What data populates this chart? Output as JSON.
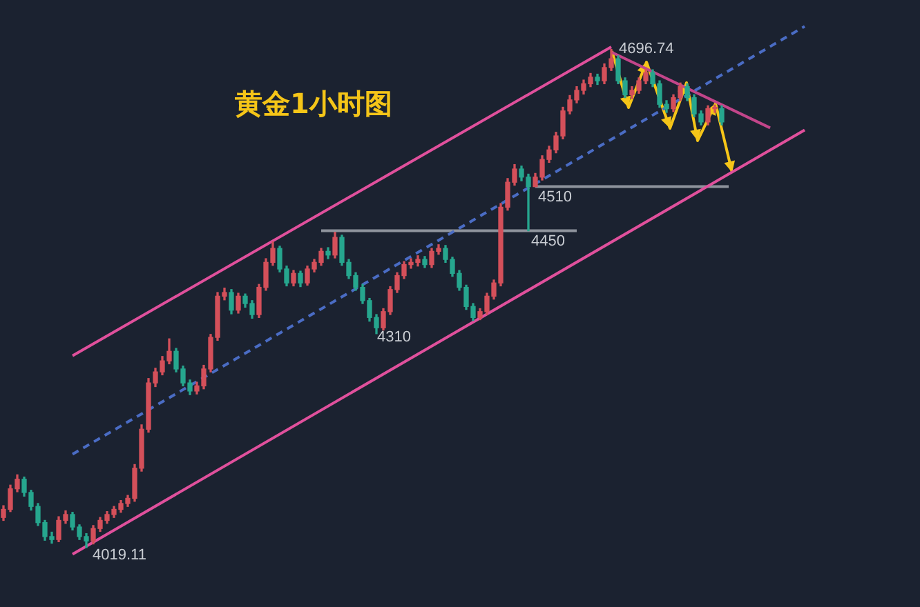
{
  "chart_data": {
    "type": "candlestick",
    "title": "黄金1小时图",
    "tick_labels": false,
    "categories": [
      null,
      null,
      null,
      null,
      null,
      null,
      null,
      null,
      null,
      null,
      null,
      null,
      null,
      null,
      null,
      null,
      null,
      null,
      null,
      null,
      null,
      null,
      null,
      null,
      null,
      null,
      null,
      null,
      null,
      null,
      null,
      null,
      null,
      null,
      null,
      null,
      null,
      null,
      null,
      null,
      null,
      null,
      null,
      null,
      null,
      null,
      null,
      null,
      null,
      null,
      null,
      null,
      null,
      null,
      null,
      null,
      null,
      null,
      null,
      null,
      null,
      null,
      null,
      null,
      null,
      null,
      null,
      null,
      null,
      null,
      null,
      null,
      null,
      null,
      null,
      null,
      null,
      null,
      null,
      null,
      null,
      null,
      null,
      null,
      null,
      null,
      null,
      null,
      null,
      null,
      null,
      null,
      null,
      null,
      null,
      null,
      null,
      null,
      null,
      null,
      null,
      null,
      null,
      null,
      null,
      null,
      null,
      null,
      null,
      null,
      null,
      null,
      null,
      null,
      null,
      null,
      null
    ],
    "ohlc": [
      [
        4060,
        4076,
        4056,
        4071
      ],
      [
        4071,
        4104,
        4068,
        4099
      ],
      [
        4099,
        4118,
        4095,
        4112
      ],
      [
        4112,
        4115,
        4089,
        4094
      ],
      [
        4094,
        4097,
        4070,
        4075
      ],
      [
        4075,
        4079,
        4049,
        4053
      ],
      [
        4053,
        4056,
        4029,
        4034
      ],
      [
        4034,
        4040,
        4025,
        4030
      ],
      [
        4030,
        4061,
        4027,
        4056
      ],
      [
        4056,
        4069,
        4052,
        4064
      ],
      [
        4064,
        4067,
        4043,
        4047
      ],
      [
        4047,
        4050,
        4030,
        4034
      ],
      [
        4034,
        4038,
        4019.11,
        4028
      ],
      [
        4028,
        4049,
        4024,
        4045
      ],
      [
        4045,
        4060,
        4041,
        4056
      ],
      [
        4056,
        4068,
        4052,
        4064
      ],
      [
        4064,
        4075,
        4060,
        4071
      ],
      [
        4071,
        4083,
        4067,
        4079
      ],
      [
        4079,
        4090,
        4075,
        4086
      ],
      [
        4086,
        4132,
        4082,
        4127
      ],
      [
        4127,
        4186,
        4123,
        4180
      ],
      [
        4180,
        4249,
        4176,
        4243
      ],
      [
        4243,
        4263,
        4238,
        4258
      ],
      [
        4258,
        4279,
        4254,
        4273
      ],
      [
        4273,
        4303,
        4269,
        4286
      ],
      [
        4286,
        4290,
        4258,
        4262
      ],
      [
        4262,
        4266,
        4239,
        4243
      ],
      [
        4243,
        4247,
        4227,
        4232
      ],
      [
        4232,
        4244,
        4228,
        4239
      ],
      [
        4239,
        4267,
        4235,
        4262
      ],
      [
        4262,
        4309,
        4258,
        4305
      ],
      [
        4305,
        4366,
        4301,
        4361
      ],
      [
        4361,
        4372,
        4356,
        4366
      ],
      [
        4366,
        4370,
        4337,
        4342
      ],
      [
        4342,
        4365,
        4338,
        4361
      ],
      [
        4361,
        4364,
        4346,
        4351
      ],
      [
        4351,
        4355,
        4331,
        4336
      ],
      [
        4336,
        4377,
        4332,
        4373
      ],
      [
        4373,
        4412,
        4369,
        4407
      ],
      [
        4407,
        4435,
        4403,
        4426
      ],
      [
        4426,
        4429,
        4394,
        4398
      ],
      [
        4398,
        4402,
        4375,
        4379
      ],
      [
        4379,
        4396,
        4375,
        4392
      ],
      [
        4392,
        4395,
        4374,
        4379
      ],
      [
        4379,
        4402,
        4376,
        4398
      ],
      [
        4398,
        4411,
        4394,
        4407
      ],
      [
        4407,
        4426,
        4403,
        4422
      ],
      [
        4422,
        4427,
        4412,
        4417
      ],
      [
        4417,
        4448,
        4413,
        4441
      ],
      [
        4441,
        4444,
        4403,
        4407
      ],
      [
        4407,
        4411,
        4385,
        4389
      ],
      [
        4389,
        4393,
        4369,
        4373
      ],
      [
        4373,
        4377,
        4351,
        4355
      ],
      [
        4355,
        4358,
        4327,
        4332
      ],
      [
        4332,
        4336,
        4310,
        4318
      ],
      [
        4318,
        4344,
        4315,
        4340
      ],
      [
        4340,
        4374,
        4336,
        4370
      ],
      [
        4370,
        4393,
        4366,
        4389
      ],
      [
        4389,
        4408,
        4385,
        4404
      ],
      [
        4404,
        4412,
        4399,
        4407
      ],
      [
        4407,
        4416,
        4402,
        4411
      ],
      [
        4411,
        4415,
        4400,
        4404
      ],
      [
        4404,
        4426,
        4400,
        4422
      ],
      [
        4422,
        4431,
        4418,
        4426
      ],
      [
        4426,
        4430,
        4407,
        4411
      ],
      [
        4411,
        4414,
        4388,
        4392
      ],
      [
        4392,
        4396,
        4369,
        4373
      ],
      [
        4373,
        4376,
        4343,
        4347
      ],
      [
        4347,
        4351,
        4328,
        4332
      ],
      [
        4332,
        4344,
        4329,
        4340
      ],
      [
        4340,
        4365,
        4336,
        4361
      ],
      [
        4361,
        4383,
        4357,
        4379
      ],
      [
        4379,
        4487,
        4375,
        4482
      ],
      [
        4482,
        4521,
        4478,
        4516
      ],
      [
        4516,
        4540,
        4512,
        4534
      ],
      [
        4534,
        4538,
        4518,
        4523
      ],
      [
        4523,
        4527,
        4450,
        4510
      ],
      [
        4510,
        4528,
        4510,
        4523
      ],
      [
        4523,
        4552,
        4519,
        4547
      ],
      [
        4547,
        4565,
        4543,
        4560
      ],
      [
        4560,
        4584,
        4556,
        4579
      ],
      [
        4579,
        4618,
        4575,
        4613
      ],
      [
        4613,
        4634,
        4609,
        4628
      ],
      [
        4628,
        4646,
        4624,
        4641
      ],
      [
        4641,
        4655,
        4636,
        4650
      ],
      [
        4650,
        4664,
        4646,
        4659
      ],
      [
        4659,
        4663,
        4649,
        4654
      ],
      [
        4654,
        4677,
        4650,
        4672
      ],
      [
        4672,
        4696.74,
        4668,
        4684
      ],
      [
        4684,
        4688,
        4650,
        4654
      ],
      [
        4654,
        4658,
        4631,
        4635
      ],
      [
        4635,
        4646,
        4630,
        4641
      ],
      [
        4641,
        4658,
        4637,
        4654
      ],
      [
        4654,
        4670,
        4650,
        4665
      ],
      [
        4665,
        4669,
        4646,
        4650
      ],
      [
        4650,
        4654,
        4618,
        4622
      ],
      [
        4622,
        4627,
        4611,
        4616
      ],
      [
        4616,
        4635,
        4612,
        4631
      ],
      [
        4631,
        4651,
        4627,
        4646
      ],
      [
        4646,
        4650,
        4627,
        4631
      ],
      [
        4631,
        4635,
        4605,
        4609
      ],
      [
        4609,
        4613,
        4594,
        4598
      ],
      [
        4598,
        4620,
        4594,
        4616
      ],
      [
        4616,
        4621,
        4611,
        4616
      ],
      [
        4616,
        4620,
        4594,
        4598
      ],
      null,
      null,
      null,
      null,
      null,
      null,
      null,
      null,
      null,
      null,
      null,
      null
    ],
    "series": [
      {
        "type": "line",
        "color": "#e0509c",
        "values": [
          null,
          null,
          null,
          null,
          null,
          null,
          null,
          null,
          null,
          null,
          4280,
          null,
          null,
          null,
          null,
          null,
          null,
          null,
          null,
          null,
          null,
          null,
          null,
          null,
          null,
          null,
          null,
          null,
          null,
          null,
          null,
          null,
          null,
          null,
          null,
          null,
          null,
          null,
          null,
          null,
          null,
          null,
          null,
          null,
          null,
          null,
          null,
          null,
          null,
          null,
          null,
          null,
          null,
          null,
          null,
          null,
          null,
          null,
          null,
          null,
          null,
          null,
          null,
          null,
          null,
          null,
          null,
          null,
          null,
          null,
          null,
          null,
          null,
          null,
          null,
          null,
          null,
          null,
          null,
          null,
          null,
          null,
          null,
          null,
          null,
          null,
          null,
          null,
          4700,
          null,
          null,
          null,
          null,
          null,
          null,
          null,
          null,
          null,
          null,
          null,
          null,
          null,
          null,
          null,
          null,
          null,
          null,
          null,
          null,
          null,
          null,
          null,
          null,
          null,
          null,
          null,
          null
        ]
      },
      {
        "type": "line",
        "color": "#e0509c",
        "values": [
          null,
          null,
          null,
          null,
          null,
          null,
          null,
          null,
          null,
          null,
          4010,
          null,
          null,
          null,
          null,
          null,
          null,
          null,
          null,
          null,
          null,
          null,
          null,
          null,
          null,
          null,
          null,
          null,
          null,
          null,
          null,
          null,
          null,
          null,
          null,
          null,
          null,
          null,
          null,
          null,
          null,
          null,
          null,
          null,
          null,
          null,
          null,
          null,
          null,
          null,
          null,
          null,
          null,
          null,
          null,
          null,
          null,
          null,
          null,
          null,
          null,
          null,
          null,
          null,
          null,
          null,
          null,
          null,
          null,
          null,
          null,
          null,
          null,
          null,
          null,
          null,
          null,
          null,
          null,
          null,
          null,
          null,
          null,
          null,
          null,
          null,
          null,
          null,
          null,
          null,
          null,
          null,
          null,
          null,
          null,
          null,
          null,
          null,
          null,
          null,
          null,
          null,
          null,
          null,
          null,
          null,
          null,
          null,
          null,
          null,
          null,
          null,
          null,
          null,
          null,
          null,
          4587
        ]
      },
      {
        "type": "line",
        "color": "#4a6cc4",
        "line_style": "dashed",
        "values": [
          null,
          null,
          null,
          null,
          null,
          null,
          null,
          null,
          null,
          null,
          4146,
          null,
          null,
          null,
          null,
          null,
          null,
          null,
          null,
          null,
          null,
          null,
          null,
          null,
          null,
          null,
          null,
          null,
          null,
          null,
          null,
          null,
          null,
          null,
          null,
          null,
          null,
          null,
          null,
          null,
          null,
          null,
          null,
          null,
          null,
          null,
          null,
          null,
          null,
          null,
          null,
          null,
          null,
          null,
          null,
          null,
          null,
          null,
          null,
          null,
          null,
          null,
          null,
          null,
          null,
          null,
          null,
          null,
          null,
          null,
          null,
          null,
          null,
          null,
          null,
          null,
          null,
          null,
          null,
          null,
          null,
          null,
          null,
          null,
          null,
          null,
          null,
          null,
          null,
          null,
          null,
          null,
          null,
          null,
          null,
          null,
          null,
          null,
          null,
          null,
          null,
          null,
          null,
          null,
          null,
          null,
          null,
          null,
          null,
          null,
          null,
          null,
          null,
          null,
          null,
          null,
          4728
        ]
      },
      {
        "type": "line",
        "color": "#c2458a",
        "values": [
          null,
          null,
          null,
          null,
          null,
          null,
          null,
          null,
          null,
          null,
          null,
          null,
          null,
          null,
          null,
          null,
          null,
          null,
          null,
          null,
          null,
          null,
          null,
          null,
          null,
          null,
          null,
          null,
          null,
          null,
          null,
          null,
          null,
          null,
          null,
          null,
          null,
          null,
          null,
          null,
          null,
          null,
          null,
          null,
          null,
          null,
          null,
          null,
          null,
          null,
          null,
          null,
          null,
          null,
          null,
          null,
          null,
          null,
          null,
          null,
          null,
          null,
          null,
          null,
          null,
          null,
          null,
          null,
          null,
          null,
          null,
          null,
          null,
          null,
          null,
          null,
          null,
          null,
          null,
          null,
          null,
          null,
          null,
          null,
          null,
          null,
          null,
          null,
          4693,
          null,
          null,
          null,
          null,
          null,
          null,
          null,
          null,
          null,
          null,
          null,
          null,
          null,
          null,
          null,
          null,
          null,
          null,
          null,
          null,
          null,
          null,
          4590,
          null,
          null,
          null,
          null,
          null
        ]
      },
      {
        "type": "line",
        "color": "#8e939c",
        "values": [
          null,
          null,
          null,
          null,
          null,
          null,
          null,
          null,
          null,
          null,
          null,
          null,
          null,
          null,
          null,
          null,
          null,
          null,
          null,
          null,
          null,
          null,
          null,
          null,
          null,
          null,
          null,
          null,
          null,
          null,
          null,
          null,
          null,
          null,
          null,
          null,
          null,
          null,
          null,
          null,
          null,
          null,
          null,
          null,
          null,
          null,
          4450,
          null,
          null,
          null,
          null,
          null,
          null,
          null,
          null,
          null,
          null,
          null,
          null,
          null,
          null,
          null,
          null,
          null,
          null,
          null,
          null,
          null,
          null,
          null,
          null,
          null,
          null,
          null,
          null,
          null,
          null,
          null,
          null,
          null,
          null,
          null,
          null,
          4450,
          null,
          null,
          null,
          null,
          null,
          null,
          null,
          null,
          null,
          null,
          null,
          null,
          null,
          null,
          null,
          null,
          null,
          null,
          null,
          null,
          null,
          null,
          null,
          null,
          null,
          null,
          null,
          null,
          null,
          null,
          null,
          null,
          null
        ]
      },
      {
        "type": "line",
        "color": "#8e939c",
        "values": [
          null,
          null,
          null,
          null,
          null,
          null,
          null,
          null,
          null,
          null,
          null,
          null,
          null,
          null,
          null,
          null,
          null,
          null,
          null,
          null,
          null,
          null,
          null,
          null,
          null,
          null,
          null,
          null,
          null,
          null,
          null,
          null,
          null,
          null,
          null,
          null,
          null,
          null,
          null,
          null,
          null,
          null,
          null,
          null,
          null,
          null,
          null,
          null,
          null,
          null,
          null,
          null,
          null,
          null,
          null,
          null,
          null,
          null,
          null,
          null,
          null,
          null,
          null,
          null,
          null,
          null,
          null,
          null,
          null,
          null,
          null,
          null,
          null,
          null,
          null,
          null,
          null,
          4510,
          null,
          null,
          null,
          null,
          null,
          null,
          null,
          null,
          null,
          null,
          null,
          null,
          null,
          null,
          null,
          null,
          null,
          null,
          null,
          null,
          null,
          null,
          null,
          null,
          null,
          null,
          null,
          4510,
          null,
          null,
          null,
          null,
          null,
          null,
          null,
          null,
          null,
          null,
          null
        ]
      }
    ],
    "annotations": [
      "4019.11",
      "4696.74",
      "4310",
      {
        "text": "4450",
        "y": 4450
      },
      {
        "text": "4510",
        "y": 4510
      }
    ]
  }
}
